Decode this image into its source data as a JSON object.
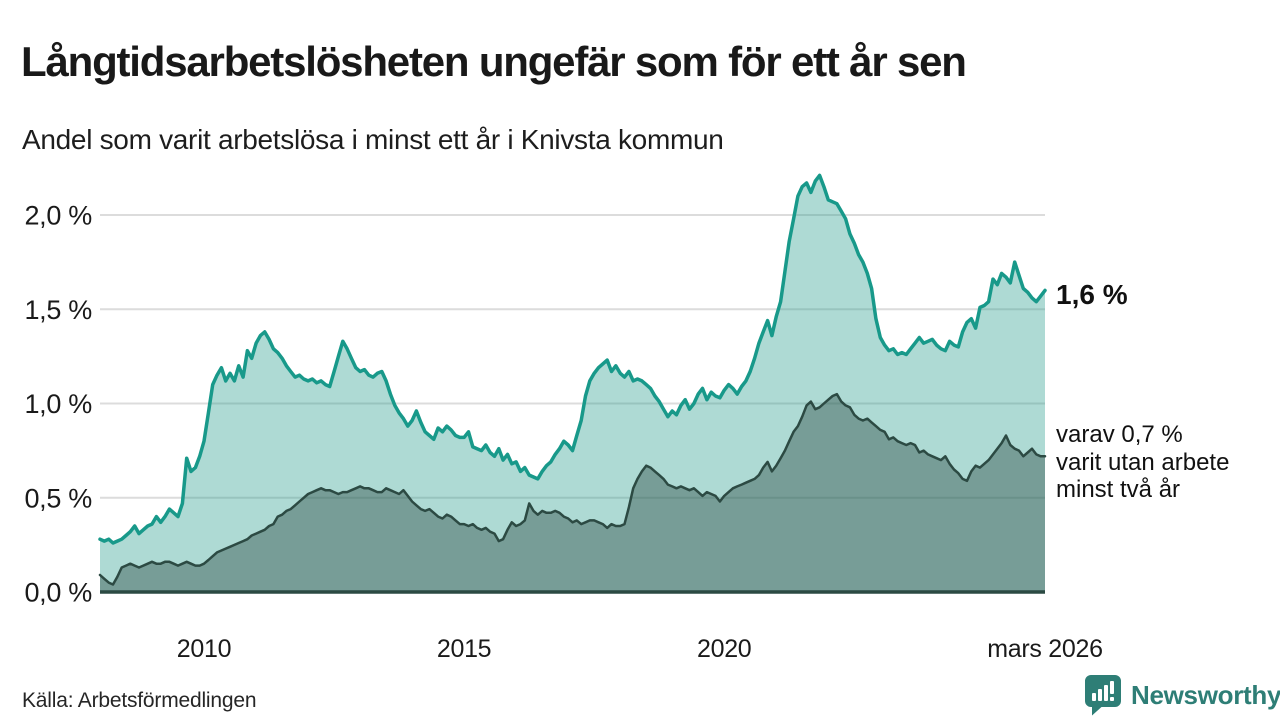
{
  "header": {
    "title": "Långtidsarbetslösheten ungefär som för ett år sen",
    "subtitle": "Andel som varit arbetslösa i minst ett år i Knivsta kommun"
  },
  "annotations": {
    "total_end": "1,6 %",
    "sub_end": "varav 0,7 %\nvarit utan arbete\nminst två år"
  },
  "footer": {
    "source": "Källa: Arbetsförmedlingen",
    "logo_text": "Newsworthy"
  },
  "colors": {
    "accent_teal_line": "#18998a",
    "accent_teal_fill": "rgba(43,159,143,0.38)",
    "dark_green_line": "#2c4a43",
    "dark_green_fill": "rgba(44,74,66,0.42)",
    "grid": "#dcdcdc",
    "axis_line": "#2c4a43",
    "text": "#1a1a1a",
    "logo_teal": "#2e7e76"
  },
  "chart_data": {
    "type": "area",
    "title": "Långtidsarbetslösheten ungefär som för ett år sen",
    "subtitle": "Andel som varit arbetslösa i minst ett år i Knivsta kommun",
    "xlabel": "",
    "ylabel": "",
    "grid": true,
    "legend_position": "direct-labels-right",
    "xlim": [
      2008.0,
      2026.1667
    ],
    "ylim": [
      0,
      2.0
    ],
    "x_start": 2008.0,
    "x_step_per_year": 12,
    "yticks": [
      {
        "label": "2,0 %",
        "value": 2.0
      },
      {
        "label": "1,5 %",
        "value": 1.5
      },
      {
        "label": "1,0 %",
        "value": 1.0
      },
      {
        "label": "0,5 %",
        "value": 0.5
      },
      {
        "label": "0,0 %",
        "value": 0.0
      }
    ],
    "xticks": [
      {
        "label": "2010",
        "value": 2010
      },
      {
        "label": "2015",
        "value": 2015
      },
      {
        "label": "2020",
        "value": 2020
      },
      {
        "label": "mars 2026",
        "value": 2026.1667
      }
    ],
    "series": [
      {
        "id": "arbetslosa-minst-ett-ar",
        "name": "Andel som varit arbetslösa i minst ett år",
        "end_label": "1,6 %",
        "end_value": 1.6,
        "color": "#18998a",
        "fill": "rgba(43,159,143,0.38)",
        "line_width": 3.5,
        "values": [
          0.28,
          0.27,
          0.28,
          0.26,
          0.27,
          0.28,
          0.3,
          0.32,
          0.35,
          0.31,
          0.33,
          0.35,
          0.36,
          0.4,
          0.37,
          0.4,
          0.44,
          0.42,
          0.4,
          0.47,
          0.71,
          0.64,
          0.66,
          0.72,
          0.8,
          0.95,
          1.1,
          1.15,
          1.19,
          1.12,
          1.16,
          1.12,
          1.2,
          1.14,
          1.28,
          1.24,
          1.32,
          1.36,
          1.38,
          1.34,
          1.29,
          1.27,
          1.24,
          1.2,
          1.17,
          1.14,
          1.15,
          1.13,
          1.12,
          1.13,
          1.11,
          1.12,
          1.1,
          1.09,
          1.17,
          1.25,
          1.33,
          1.29,
          1.24,
          1.19,
          1.17,
          1.18,
          1.15,
          1.14,
          1.16,
          1.17,
          1.12,
          1.05,
          0.99,
          0.95,
          0.92,
          0.88,
          0.91,
          0.96,
          0.9,
          0.85,
          0.83,
          0.81,
          0.87,
          0.85,
          0.88,
          0.86,
          0.83,
          0.82,
          0.82,
          0.85,
          0.77,
          0.76,
          0.75,
          0.78,
          0.74,
          0.72,
          0.76,
          0.7,
          0.73,
          0.68,
          0.69,
          0.64,
          0.66,
          0.62,
          0.61,
          0.6,
          0.64,
          0.67,
          0.69,
          0.73,
          0.76,
          0.8,
          0.78,
          0.75,
          0.83,
          0.91,
          1.04,
          1.12,
          1.16,
          1.19,
          1.21,
          1.23,
          1.17,
          1.2,
          1.16,
          1.14,
          1.17,
          1.12,
          1.13,
          1.12,
          1.1,
          1.08,
          1.04,
          1.01,
          0.97,
          0.93,
          0.96,
          0.94,
          0.99,
          1.02,
          0.97,
          1.0,
          1.05,
          1.08,
          1.02,
          1.06,
          1.04,
          1.03,
          1.07,
          1.1,
          1.08,
          1.05,
          1.09,
          1.12,
          1.17,
          1.24,
          1.32,
          1.38,
          1.44,
          1.36,
          1.46,
          1.54,
          1.7,
          1.86,
          1.98,
          2.1,
          2.15,
          2.17,
          2.12,
          2.18,
          2.21,
          2.15,
          2.08,
          2.07,
          2.06,
          2.02,
          1.98,
          1.9,
          1.85,
          1.79,
          1.75,
          1.69,
          1.61,
          1.45,
          1.35,
          1.31,
          1.28,
          1.29,
          1.26,
          1.27,
          1.26,
          1.29,
          1.32,
          1.35,
          1.32,
          1.33,
          1.34,
          1.31,
          1.29,
          1.28,
          1.33,
          1.31,
          1.3,
          1.38,
          1.43,
          1.45,
          1.4,
          1.51,
          1.52,
          1.54,
          1.66,
          1.63,
          1.69,
          1.67,
          1.64,
          1.75,
          1.68,
          1.61,
          1.59,
          1.56,
          1.54,
          1.57,
          1.6
        ]
      },
      {
        "id": "utan-arbete-minst-tva-ar",
        "name": "varav varit utan arbete minst två år",
        "end_label": "varav 0,7 % varit utan arbete minst två år",
        "end_value": 0.7,
        "color": "#2c4a43",
        "fill": "rgba(44,74,66,0.42)",
        "line_width": 2.5,
        "values": [
          0.09,
          0.07,
          0.05,
          0.04,
          0.08,
          0.13,
          0.14,
          0.15,
          0.14,
          0.13,
          0.14,
          0.15,
          0.16,
          0.15,
          0.15,
          0.16,
          0.16,
          0.15,
          0.14,
          0.15,
          0.16,
          0.15,
          0.14,
          0.14,
          0.15,
          0.17,
          0.19,
          0.21,
          0.22,
          0.23,
          0.24,
          0.25,
          0.26,
          0.27,
          0.28,
          0.3,
          0.31,
          0.32,
          0.33,
          0.35,
          0.36,
          0.4,
          0.41,
          0.43,
          0.44,
          0.46,
          0.48,
          0.5,
          0.52,
          0.53,
          0.54,
          0.55,
          0.54,
          0.54,
          0.53,
          0.52,
          0.53,
          0.53,
          0.54,
          0.55,
          0.56,
          0.55,
          0.55,
          0.54,
          0.53,
          0.53,
          0.55,
          0.54,
          0.53,
          0.52,
          0.54,
          0.51,
          0.48,
          0.46,
          0.44,
          0.43,
          0.44,
          0.42,
          0.4,
          0.39,
          0.41,
          0.4,
          0.38,
          0.36,
          0.36,
          0.35,
          0.36,
          0.34,
          0.33,
          0.34,
          0.32,
          0.31,
          0.27,
          0.28,
          0.33,
          0.37,
          0.35,
          0.36,
          0.38,
          0.47,
          0.43,
          0.41,
          0.43,
          0.42,
          0.42,
          0.43,
          0.42,
          0.4,
          0.39,
          0.37,
          0.38,
          0.36,
          0.37,
          0.38,
          0.38,
          0.37,
          0.36,
          0.34,
          0.36,
          0.35,
          0.35,
          0.36,
          0.45,
          0.55,
          0.6,
          0.64,
          0.67,
          0.66,
          0.64,
          0.62,
          0.6,
          0.57,
          0.56,
          0.55,
          0.56,
          0.55,
          0.54,
          0.55,
          0.53,
          0.51,
          0.53,
          0.52,
          0.51,
          0.48,
          0.51,
          0.53,
          0.55,
          0.56,
          0.57,
          0.58,
          0.59,
          0.6,
          0.62,
          0.66,
          0.69,
          0.64,
          0.67,
          0.71,
          0.75,
          0.8,
          0.85,
          0.88,
          0.93,
          0.99,
          1.01,
          0.97,
          0.98,
          1.0,
          1.02,
          1.04,
          1.05,
          1.01,
          0.99,
          0.98,
          0.94,
          0.92,
          0.91,
          0.92,
          0.9,
          0.88,
          0.86,
          0.85,
          0.81,
          0.82,
          0.8,
          0.79,
          0.78,
          0.79,
          0.78,
          0.74,
          0.75,
          0.73,
          0.72,
          0.71,
          0.7,
          0.72,
          0.68,
          0.65,
          0.63,
          0.6,
          0.59,
          0.64,
          0.67,
          0.66,
          0.68,
          0.7,
          0.73,
          0.76,
          0.79,
          0.83,
          0.78,
          0.76,
          0.75,
          0.72,
          0.74,
          0.76,
          0.73,
          0.72,
          0.72
        ]
      }
    ]
  }
}
